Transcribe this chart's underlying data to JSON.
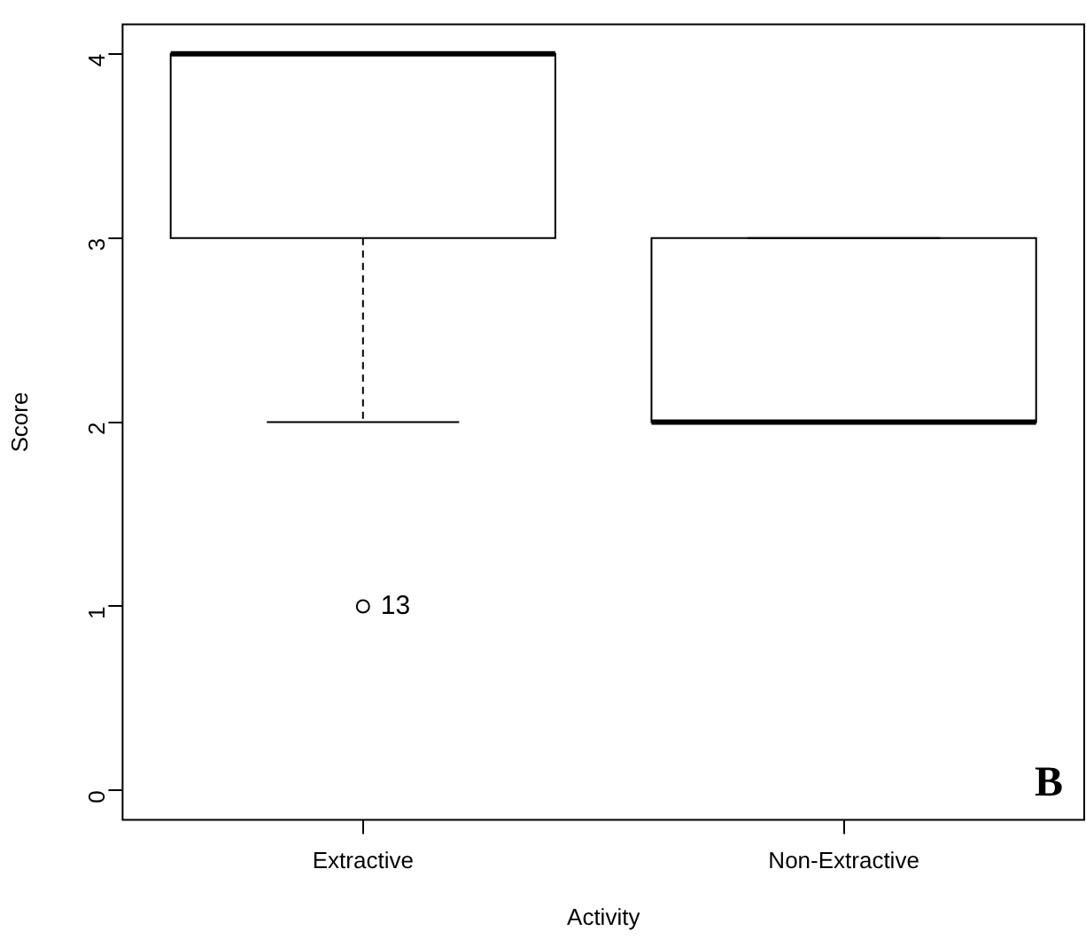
{
  "chart_data": {
    "type": "box",
    "xlabel": "Activity",
    "ylabel": "Score",
    "categories": [
      "Extractive",
      "Non-Extractive"
    ],
    "boxes": [
      {
        "low": 2,
        "q1": 3,
        "median": 4,
        "q3": 4,
        "high": 4,
        "outliers": [
          1
        ]
      },
      {
        "low": 2,
        "q1": 2,
        "median": 2,
        "q3": 3,
        "high": 3
      }
    ],
    "ylim": [
      -0.16,
      4.16
    ],
    "yticks": [
      0,
      1,
      2,
      3,
      4
    ],
    "grid": false,
    "legend": false,
    "annotations": [
      "13",
      "B"
    ]
  }
}
